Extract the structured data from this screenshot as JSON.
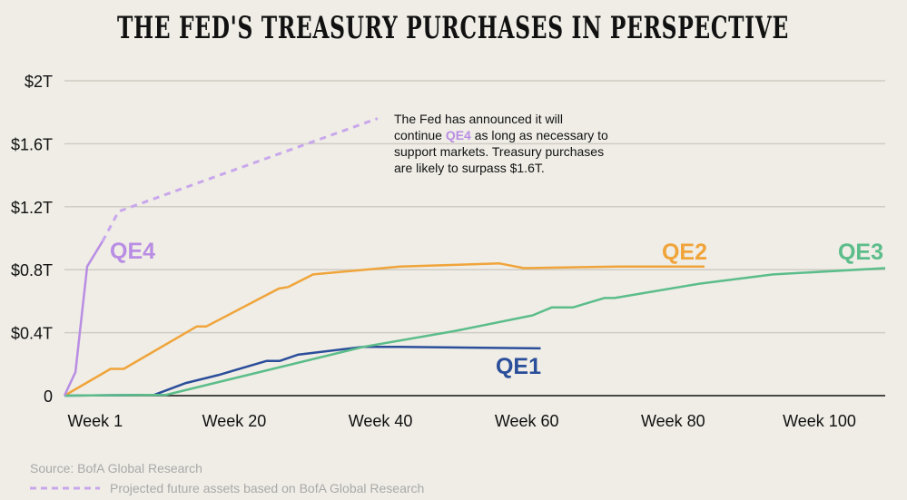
{
  "chart_data": {
    "type": "line",
    "title": "THE FED'S TREASURY PURCHASES IN PERSPECTIVE",
    "xlabel": "",
    "ylabel": "",
    "xlim": [
      -3.2,
      109
    ],
    "ylim": [
      0,
      2
    ],
    "grid": true,
    "x_ticks": [
      {
        "value": 1,
        "label": "Week 1"
      },
      {
        "value": 20,
        "label": "Week 20"
      },
      {
        "value": 40,
        "label": "Week 40"
      },
      {
        "value": 60,
        "label": "Week 60"
      },
      {
        "value": 80,
        "label": "Week 80"
      },
      {
        "value": 100,
        "label": "Week 100"
      }
    ],
    "y_ticks": [
      {
        "value": 0,
        "label": "0"
      },
      {
        "value": 0.4,
        "label": "$0.4T"
      },
      {
        "value": 0.8,
        "label": "$0.8T"
      },
      {
        "value": 1.2,
        "label": "$1.2T"
      },
      {
        "value": 1.6,
        "label": "$1.6T"
      },
      {
        "value": 2,
        "label": "$2T"
      }
    ],
    "series": [
      {
        "name": "QE1",
        "color": "#2b4e9b",
        "dashed": false,
        "x": [
          -3.2,
          9.1,
          13.4,
          17.8,
          24.4,
          26.2,
          28.7,
          37.7,
          42.7,
          61.9
        ],
        "y": [
          0,
          0.005,
          0.08,
          0.13,
          0.22,
          0.22,
          0.26,
          0.31,
          0.31,
          0.3
        ]
      },
      {
        "name": "QE2",
        "color": "#f0a43a",
        "dashed": false,
        "x": [
          -3.2,
          3.1,
          4.9,
          14.9,
          16.2,
          26.1,
          27.4,
          30.8,
          42.7,
          56.3,
          59.6,
          72.5,
          84.3
        ],
        "y": [
          0,
          0.17,
          0.17,
          0.44,
          0.44,
          0.68,
          0.69,
          0.77,
          0.82,
          0.84,
          0.81,
          0.82,
          0.82
        ]
      },
      {
        "name": "QE3",
        "color": "#5cbd8a",
        "dashed": false,
        "x": [
          -3.2,
          10.7,
          37.7,
          50.1,
          60.8,
          63.4,
          66.3,
          70.6,
          72,
          83.5,
          93.7,
          109
        ],
        "y": [
          0,
          0.005,
          0.31,
          0.41,
          0.51,
          0.56,
          0.56,
          0.62,
          0.62,
          0.71,
          0.77,
          0.81
        ]
      },
      {
        "name": "QE4",
        "color": "#b98de3",
        "dashed": false,
        "x": [
          -3.2,
          -1.7,
          -0.1,
          2.0
        ],
        "y": [
          0,
          0.15,
          0.82,
          0.98
        ]
      },
      {
        "name": "QE4 projected",
        "color": "#c9a7ec",
        "dashed": true,
        "x": [
          2.0,
          4.2,
          7.2,
          39.6
        ],
        "y": [
          0.98,
          1.17,
          1.22,
          1.76
        ]
      }
    ],
    "annotation": {
      "lines": [
        [
          {
            "t": "The Fed has announced it will"
          }
        ],
        [
          {
            "t": "continue "
          },
          {
            "t": "QE4",
            "hl": true
          },
          {
            "t": " as long as necessary to"
          }
        ],
        [
          {
            "t": "support markets. Treasury purchases"
          }
        ],
        [
          {
            "t": "are likely to surpass $1.6T."
          }
        ]
      ],
      "highlight_color": "#b98de3"
    },
    "source": "Source: BofA Global Research",
    "legend": [
      {
        "label": "Projected future assets based on BofA Global Research",
        "style": "dashed",
        "color": "#c9a7ec"
      }
    ]
  }
}
